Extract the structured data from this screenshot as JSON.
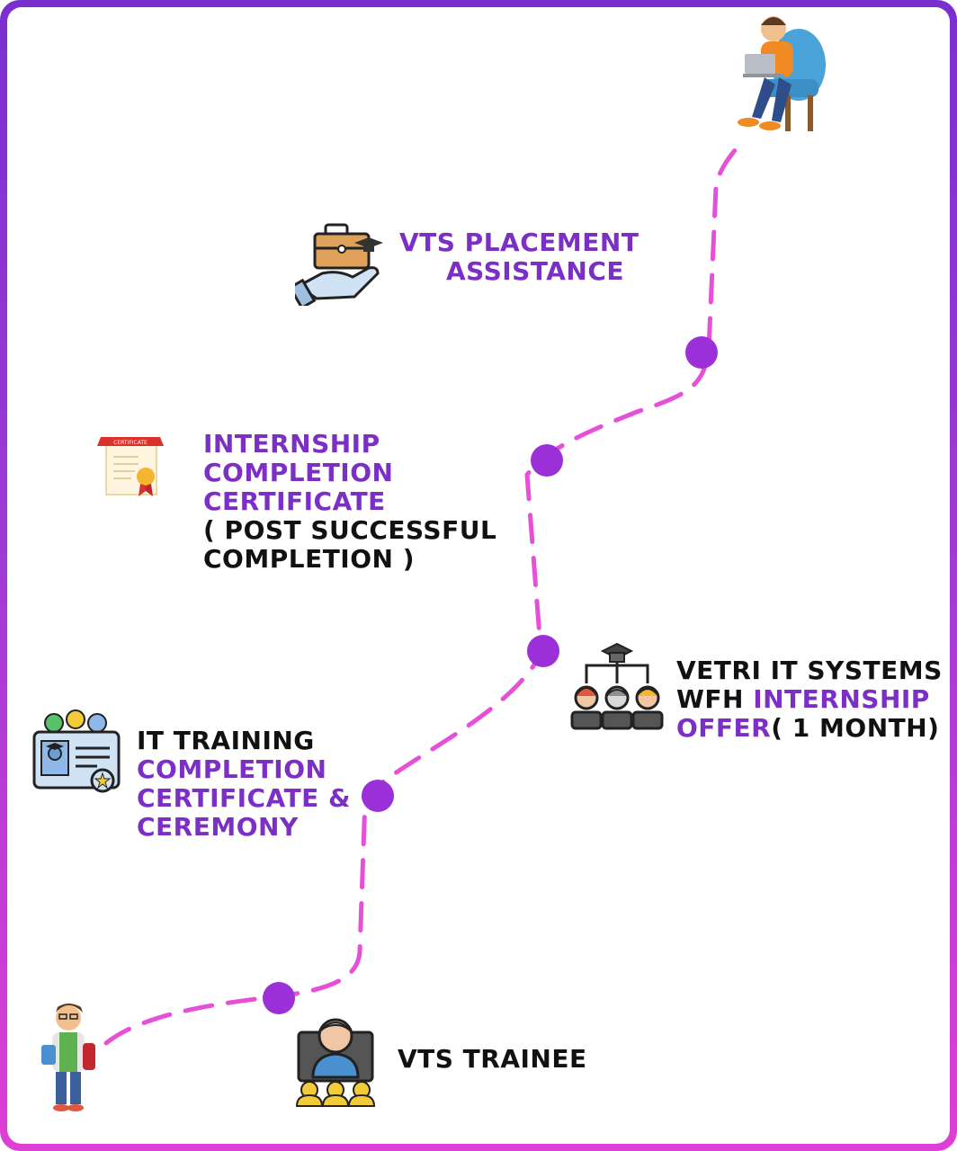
{
  "colors": {
    "accent": "#7b2fc4",
    "frame_top": "#7a2fd0",
    "frame_bottom": "#de3fd4",
    "dash": "#e64fd8",
    "node": "#9b30d9"
  },
  "milestones": {
    "placement": {
      "line1": "VTS PLACEMENT",
      "line2": "ASSISTANCE",
      "icon": "briefcase-hand-icon"
    },
    "internship_certificate": {
      "line1": "INTERNSHIP",
      "line2": "COMPLETION",
      "line3": "CERTIFICATE",
      "line4": "( POST SUCCESSFUL",
      "line5": "COMPLETION )",
      "icon": "certificate-icon"
    },
    "internship_offer": {
      "line1": "VETRI IT SYSTEMS",
      "line2a": "WFH ",
      "line2b": "INTERNSHIP",
      "line3a": "OFFER",
      "line3b": "( 1 MONTH)",
      "icon": "team-graduate-icon"
    },
    "training_certificate": {
      "line1": "IT TRAINING",
      "line2": "COMPLETION",
      "line3": "CERTIFICATE &",
      "line4": "CEREMONY",
      "icon": "id-card-certificate-icon"
    },
    "trainee": {
      "label": "VTS TRAINEE",
      "icon": "trainee-group-icon"
    }
  },
  "figures": {
    "start": "student-figure",
    "end": "professional-at-laptop-figure"
  }
}
